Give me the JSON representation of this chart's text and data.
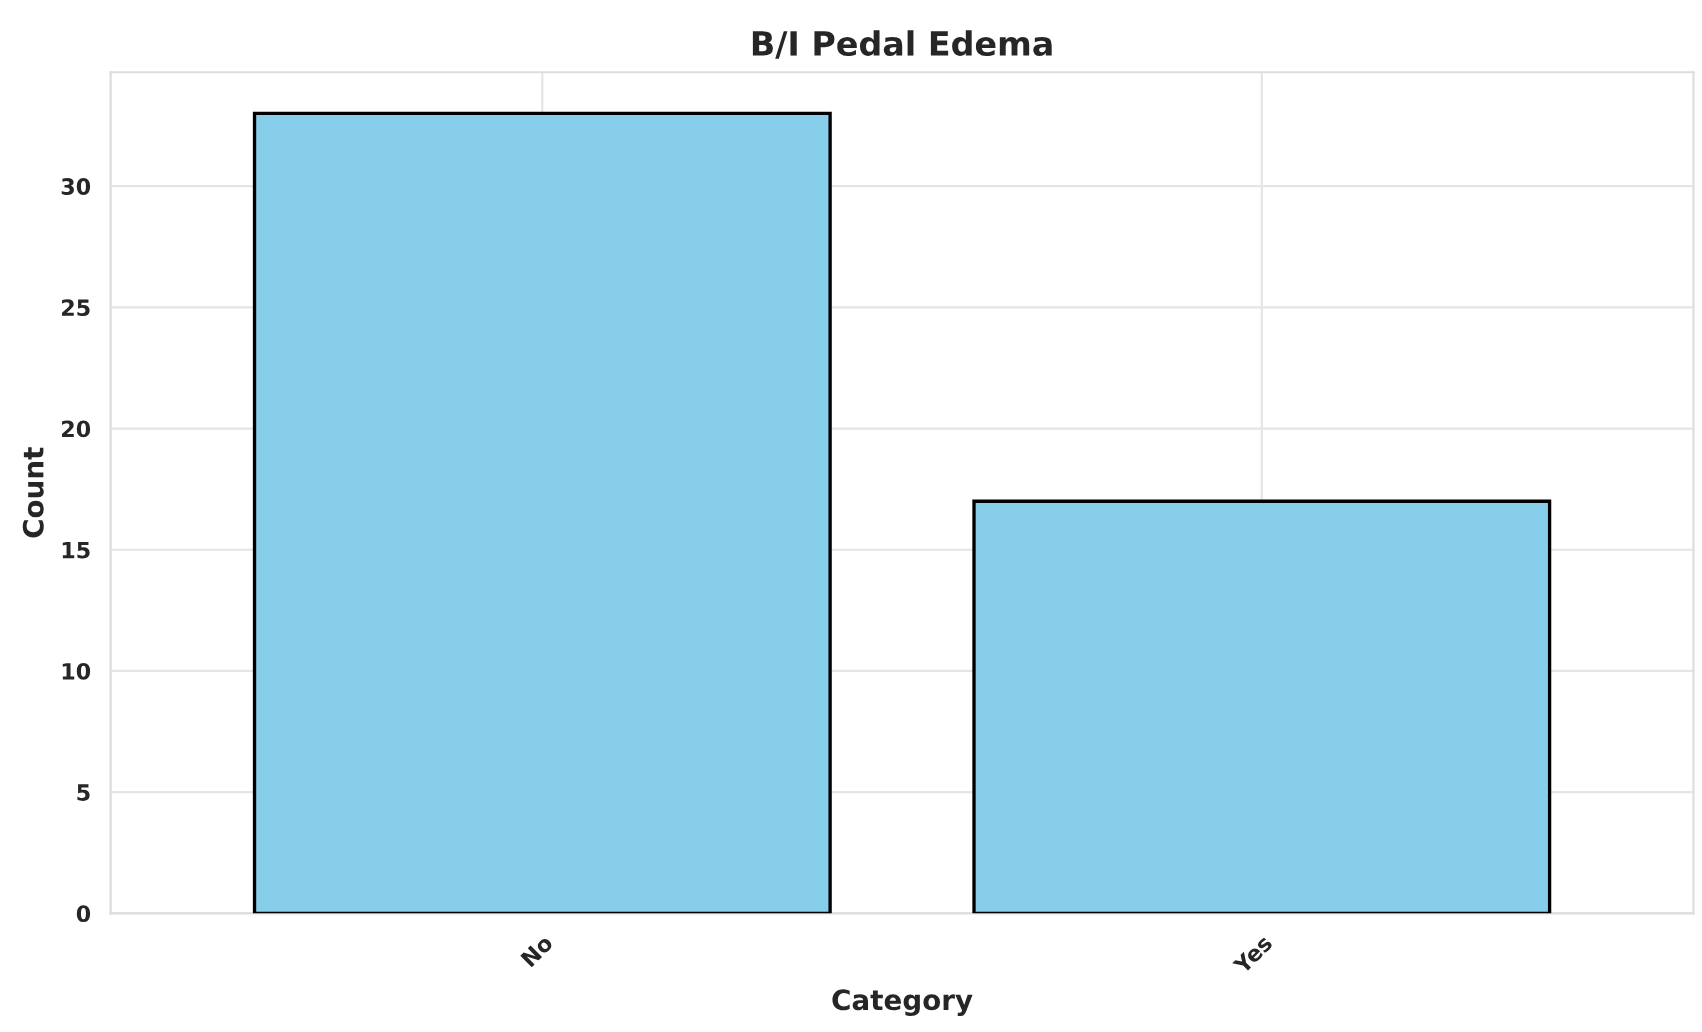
{
  "chart_data": {
    "type": "bar",
    "title": "B/I Pedal Edema",
    "xlabel": "Category",
    "ylabel": "Count",
    "categories": [
      "No",
      "Yes"
    ],
    "values": [
      33,
      17
    ],
    "color": "#87ceeb",
    "ylim": [
      0,
      34.7
    ],
    "yticks": [
      0,
      5,
      10,
      15,
      20,
      25,
      30
    ],
    "grid": true
  }
}
